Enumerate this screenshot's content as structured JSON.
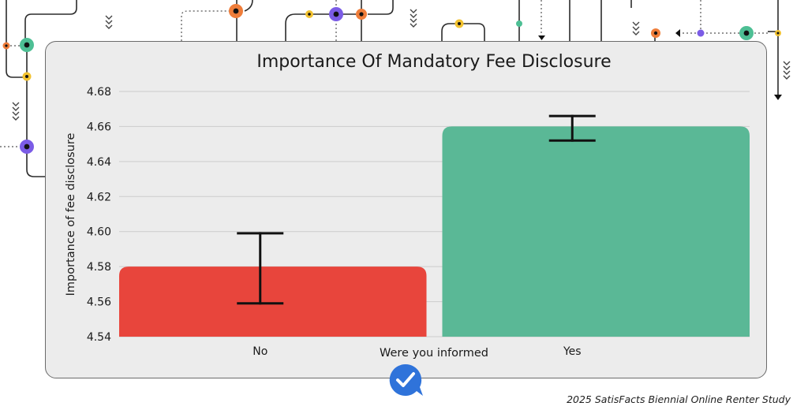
{
  "colors": {
    "card_bg": "#ececec",
    "no_bar": "#e8453c",
    "yes_bar": "#5ab896",
    "error_bar": "#111111",
    "grid": "#cccccc",
    "deco_orange": "#ef7d3a",
    "deco_purple": "#7b5ce6",
    "deco_green": "#4dbf94",
    "deco_yellow": "#f2c230",
    "badge_blue": "#2f73da"
  },
  "icons": {
    "badge": "checkmark-chat-bubble-icon"
  },
  "footer": {
    "text": "2025 SatisFacts Biennial Online Renter Study"
  },
  "chart_data": {
    "type": "bar",
    "title": "Importance Of Mandatory Fee Disclosure",
    "xlabel": "Were you informed",
    "ylabel": "Importance of fee disclosure",
    "categories": [
      "No",
      "Yes"
    ],
    "values": [
      4.58,
      4.66
    ],
    "error_low": [
      4.559,
      4.652
    ],
    "error_high": [
      4.599,
      4.666
    ],
    "ylim": [
      4.54,
      4.68
    ],
    "yticks": [
      "4.54",
      "4.56",
      "4.58",
      "4.60",
      "4.62",
      "4.64",
      "4.66",
      "4.68"
    ],
    "grid": true,
    "legend": "none"
  }
}
